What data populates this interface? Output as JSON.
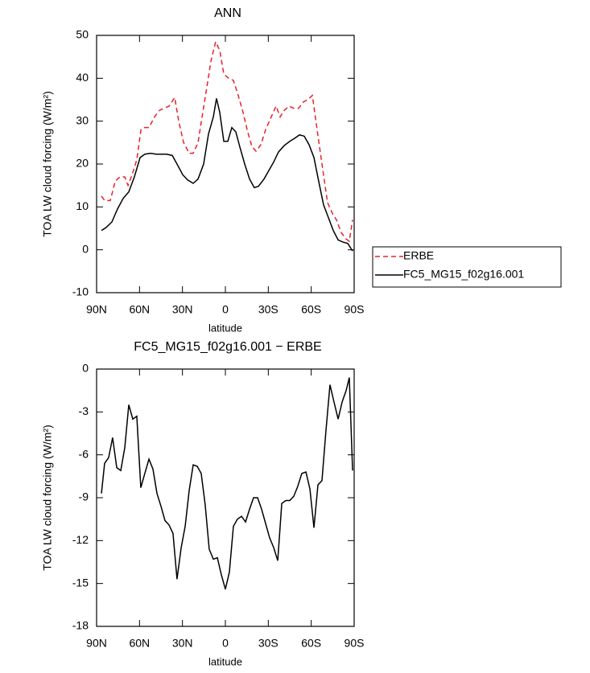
{
  "chart_data": [
    {
      "type": "line",
      "title": "ANN",
      "xlabel": "latitude",
      "ylabel": "TOA LW cloud forcing (W/m²)",
      "xlim": [
        90,
        -90
      ],
      "xticks": [
        {
          "value": 90,
          "label": "90N"
        },
        {
          "value": 60,
          "label": "60N"
        },
        {
          "value": 30,
          "label": "30N"
        },
        0,
        {
          "value": -30,
          "label": "30S"
        },
        {
          "value": -60,
          "label": "60S"
        },
        {
          "value": -90,
          "label": "90S"
        }
      ],
      "ylim": [
        -10,
        50
      ],
      "yticks": [
        -10,
        0,
        10,
        20,
        30,
        40,
        50
      ],
      "legend": "right",
      "series": [
        {
          "name": "ERBE",
          "color": "#e8212b",
          "dash": true,
          "x": [
            86.6,
            84.4,
            80.4,
            77,
            73.7,
            70.3,
            68,
            64.7,
            61.9,
            59,
            56.8,
            53.4,
            49.5,
            46.1,
            42.8,
            39.4,
            35.4,
            32.6,
            29.2,
            25.3,
            22.5,
            19.1,
            16.3,
            12.9,
            10.1,
            6.8,
            3.9,
            1.1,
            -2.3,
            -5.6,
            -9,
            -12.4,
            -15.2,
            -18.6,
            -21.4,
            -24.8,
            -28.1,
            -32.1,
            -35.4,
            -38.3,
            -41.1,
            -44.4,
            -47.8,
            -51.2,
            -54.6,
            -57.4,
            -60.8,
            -64.1,
            -67.5,
            -71.4,
            -74.8,
            -77.6,
            -81,
            -84.4,
            -86.6,
            -88.9
          ],
          "values": [
            12.5,
            11.5,
            11.5,
            16,
            17,
            17,
            15,
            18,
            21,
            28,
            28.5,
            28.5,
            31,
            32.5,
            33,
            33.5,
            35.5,
            30,
            25,
            22.5,
            22.5,
            25,
            31,
            38,
            44,
            48.5,
            46.5,
            41,
            40,
            39.5,
            36,
            32,
            28,
            24,
            23,
            24.5,
            28,
            31,
            33.5,
            31,
            32.5,
            33.5,
            33,
            33,
            34.5,
            35,
            36,
            28,
            20,
            11,
            8.5,
            7,
            4,
            2.5,
            2,
            7
          ]
        },
        {
          "name": "FC5_MG15_f02g16.001",
          "color": "#000000",
          "dash": false,
          "x": [
            86.6,
            83.3,
            79.3,
            75.4,
            71.4,
            67.5,
            63.6,
            59.6,
            56.3,
            52.3,
            48.4,
            44.4,
            41.1,
            37.1,
            33.8,
            29.8,
            26.4,
            22.5,
            19.1,
            15.2,
            11.8,
            8.4,
            6.2,
            3.9,
            1.1,
            -1.7,
            -4.5,
            -7.3,
            -10.1,
            -13.5,
            -16.9,
            -20.2,
            -23.1,
            -27,
            -30.4,
            -33.8,
            -37.1,
            -41.1,
            -45,
            -48.4,
            -51.8,
            -55.1,
            -58.5,
            -61.9,
            -65.2,
            -68.6,
            -72,
            -75.4,
            -78.8,
            -82.1,
            -85.5,
            -88.9
          ],
          "values": [
            4.5,
            5.2,
            6.5,
            9.5,
            12,
            13.5,
            17,
            21.5,
            22.3,
            22.5,
            22.3,
            22.3,
            22.3,
            22,
            20,
            17.5,
            16.3,
            15.5,
            16.5,
            20,
            27,
            31,
            35.3,
            32,
            25.3,
            25.3,
            28.5,
            27.5,
            24,
            20,
            16.5,
            14.5,
            14.8,
            16.5,
            18.5,
            20.5,
            22.8,
            24.3,
            25.3,
            26,
            26.8,
            26.5,
            24.5,
            21.5,
            16,
            10.5,
            7.5,
            4.5,
            2.3,
            1.8,
            1.5,
            -0.3
          ]
        }
      ]
    },
    {
      "type": "line",
      "title": "FC5_MG15_f02g16.001 − ERBE",
      "xlabel": "latitude",
      "ylabel": "TOA LW cloud forcing (W/m²)",
      "xlim": [
        90,
        -90
      ],
      "xticks": [
        {
          "value": 90,
          "label": "90N"
        },
        {
          "value": 60,
          "label": "60N"
        },
        {
          "value": 30,
          "label": "30N"
        },
        0,
        {
          "value": -30,
          "label": "30S"
        },
        {
          "value": -60,
          "label": "60S"
        },
        {
          "value": -90,
          "label": "90S"
        }
      ],
      "ylim": [
        -18,
        0
      ],
      "yticks": [
        -18,
        -15,
        -12,
        -9,
        -6,
        -3,
        0
      ],
      "series": [
        {
          "color": "#000000",
          "dash": false,
          "x": [
            86.6,
            84.4,
            81.6,
            78.8,
            75.9,
            73.1,
            70.3,
            67.5,
            64.7,
            61.9,
            59.1,
            56.3,
            53.4,
            50.6,
            47.8,
            45,
            42.2,
            39.4,
            36.6,
            33.8,
            30.9,
            28.1,
            25.3,
            22.5,
            19.7,
            16.9,
            14.1,
            11.3,
            8.4,
            5.6,
            2.8,
            0,
            -2.8,
            -5.6,
            -8.4,
            -11.3,
            -14.1,
            -16.9,
            -19.7,
            -22.5,
            -25.3,
            -28.1,
            -30.9,
            -33.8,
            -36.6,
            -39.4,
            -42.2,
            -45,
            -47.8,
            -50.6,
            -53.4,
            -56.3,
            -59.1,
            -61.9,
            -64.7,
            -67.5,
            -70.3,
            -73.1,
            -75.9,
            -78.8,
            -81.6,
            -84.4,
            -86.6,
            -88.9
          ],
          "values": [
            -8.7,
            -6.6,
            -6.2,
            -4.8,
            -6.9,
            -7.1,
            -5.5,
            -2.5,
            -3.5,
            -3.3,
            -8.3,
            -7.3,
            -6.3,
            -7,
            -8.7,
            -9.6,
            -10.6,
            -10.9,
            -11.5,
            -14.7,
            -12.5,
            -11,
            -8.5,
            -6.7,
            -6.8,
            -7.3,
            -9.5,
            -12.6,
            -13.3,
            -13.2,
            -14.4,
            -15.4,
            -14.2,
            -11,
            -10.5,
            -10.3,
            -10.7,
            -9.8,
            -9,
            -9,
            -9.8,
            -10.8,
            -11.8,
            -12.5,
            -13.4,
            -9.4,
            -9.2,
            -9.2,
            -8.9,
            -8.2,
            -7.3,
            -7.2,
            -8.4,
            -11.1,
            -8.1,
            -7.8,
            -4.3,
            -1.1,
            -2.3,
            -3.5,
            -2.3,
            -1.5,
            -0.6,
            -7.1
          ]
        }
      ]
    }
  ]
}
